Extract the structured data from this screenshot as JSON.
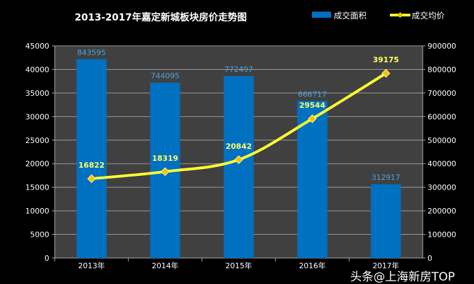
{
  "chart_data": {
    "type": "bar+line",
    "title": "2013-2017年嘉定新城板块房价走势图",
    "categories": [
      "2013年",
      "2014年",
      "2015年",
      "2016年",
      "2017年"
    ],
    "series": [
      {
        "name": "成交面积",
        "type": "bar",
        "axis": "right",
        "values": [
          843595,
          744095,
          772497,
          666717,
          312917
        ],
        "color": "#0070c0"
      },
      {
        "name": "成交均价",
        "type": "line",
        "axis": "left",
        "values": [
          16822,
          18319,
          20842,
          29544,
          39175
        ],
        "color": "#ffff33"
      }
    ],
    "left_axis": {
      "ylim": [
        0,
        45000
      ],
      "ticks": [
        0,
        5000,
        10000,
        15000,
        20000,
        25000,
        30000,
        35000,
        40000,
        45000
      ]
    },
    "right_axis": {
      "ylim": [
        0,
        900000
      ],
      "ticks": [
        0,
        100000,
        200000,
        300000,
        400000,
        500000,
        600000,
        700000,
        800000,
        900000
      ]
    },
    "grid": true,
    "legend": "top-right",
    "plot_background": "#404040"
  },
  "watermark": "头条@上海新房TOP"
}
